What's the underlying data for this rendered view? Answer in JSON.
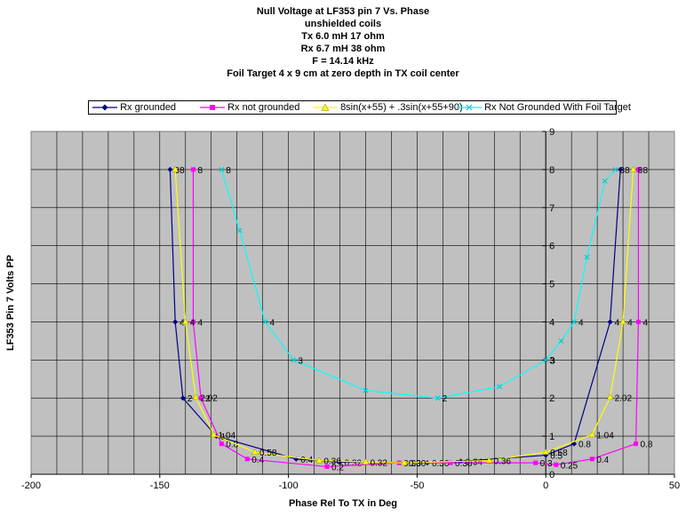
{
  "chart_data": {
    "type": "scatter",
    "title_lines": [
      "Null Voltage at LF353 pin 7 Vs. Phase",
      "unshielded coils",
      "Tx 6.0 mH 17 ohm",
      "Rx 6.7 mH 38 ohm",
      "F = 14.14 kHz",
      "Foil Target 4 x 9 cm at zero depth in TX  coil center"
    ],
    "xlabel": "Phase Rel To TX in Deg",
    "ylabel": "LF353 Pin 7 Volts PP",
    "xlim": [
      -200,
      50
    ],
    "ylim": [
      0,
      9
    ],
    "x_ticks": [
      "-200",
      "-150",
      "-100",
      "-50",
      "0",
      "50"
    ],
    "y_ticks": [
      "0",
      "1",
      "2",
      "3",
      "4",
      "5",
      "6",
      "7",
      "8",
      "9"
    ],
    "grid": true,
    "legend_position": "top",
    "series": [
      {
        "name": "Rx grounded",
        "color": "#000080",
        "marker": "diamond",
        "x": [
          -146,
          -144,
          -141,
          -128,
          -97,
          -80,
          -46,
          -33,
          0,
          11,
          25,
          29
        ],
        "y": [
          8,
          4,
          2,
          1,
          0.4,
          0.32,
          0.3,
          0.34,
          0.5,
          0.8,
          4,
          8
        ],
        "labels": [
          "8",
          "4",
          "2",
          "1",
          "0.4",
          "0.32",
          "0.30",
          "0.34",
          "0.5",
          "0.8",
          "4",
          "8"
        ]
      },
      {
        "name": "Rx not grounded",
        "color": "#ff00ff",
        "marker": "square",
        "x": [
          -137,
          -137,
          -134,
          -126,
          -116,
          -85,
          -57,
          -37,
          -4,
          4,
          18,
          35,
          36,
          36
        ],
        "y": [
          8,
          4,
          2,
          0.8,
          0.4,
          0.2,
          0.3,
          0.3,
          0.3,
          0.25,
          0.4,
          0.8,
          4,
          8
        ],
        "labels": [
          "8",
          "4",
          "2",
          "0.8",
          "0.4",
          "0.2",
          "0.30",
          "0.30",
          "0.3",
          "0.25",
          "0.4",
          "0.8",
          "4",
          "8"
        ]
      },
      {
        "name": "8sin(x+55) + .3sin(x+55+90)",
        "color": "#ffff00",
        "marker": "triangle",
        "x": [
          -144,
          -140,
          -136,
          -129,
          -113,
          -88,
          -70,
          -55,
          -22,
          0,
          18,
          25,
          30,
          34
        ],
        "y": [
          8,
          4,
          2.02,
          1.04,
          0.58,
          0.36,
          0.32,
          0.3,
          0.36,
          0.58,
          1.04,
          2.02,
          4,
          8
        ],
        "labels": [
          "8",
          "4",
          "2.02",
          "1.04",
          "0.58",
          "0.36",
          "0.32",
          "0.30",
          "0.36",
          "0.58",
          "1.04",
          "2.02",
          "4",
          "8"
        ]
      },
      {
        "name": "Rx Not Grounded With Foil Target",
        "color": "#00ffff",
        "marker": "x",
        "x": [
          -126,
          -119,
          -109,
          -98,
          -70,
          -42,
          -18,
          0,
          6,
          11,
          16,
          23,
          27
        ],
        "y": [
          8,
          6.4,
          4,
          3,
          2.2,
          2,
          2.3,
          3,
          3.5,
          4,
          5.7,
          7.7,
          8
        ],
        "labels": [
          "8",
          "",
          "4",
          "3",
          "",
          "2",
          "",
          "3",
          "",
          "4",
          "",
          "",
          "8"
        ]
      }
    ]
  }
}
